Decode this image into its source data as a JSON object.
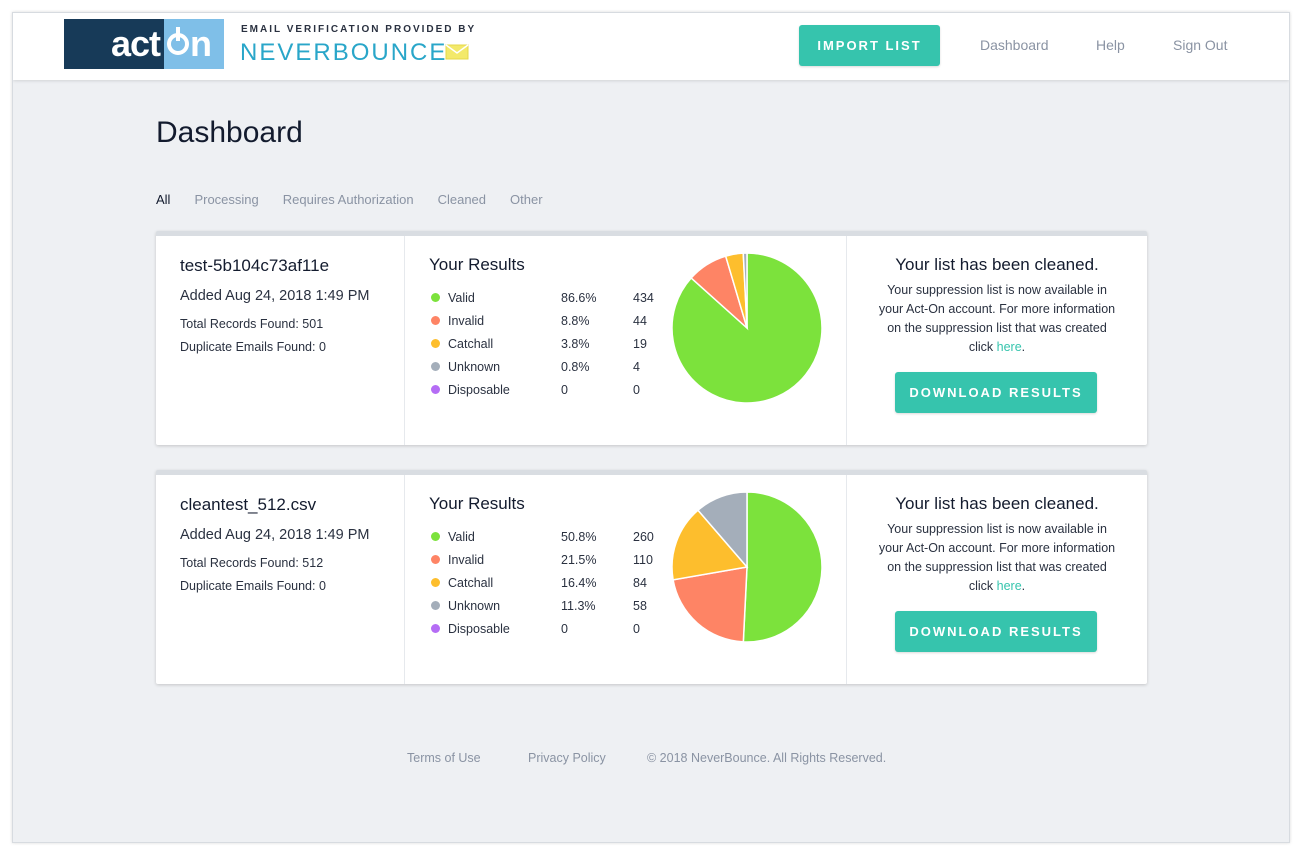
{
  "brand": {
    "logo_left": "act",
    "logo_right": "n",
    "caption": "EMAIL VERIFICATION PROVIDED BY",
    "provider": "NEVERBOUNCE"
  },
  "header": {
    "import_label": "IMPORT LIST",
    "nav": [
      "Dashboard",
      "Help",
      "Sign Out"
    ]
  },
  "page": {
    "title": "Dashboard",
    "tabs": [
      "All",
      "Processing",
      "Requires Authorization",
      "Cleaned",
      "Other"
    ],
    "active_tab": "All"
  },
  "legend_colors": {
    "Valid": "#7ce23c",
    "Invalid": "#fe8465",
    "Catchall": "#fdbe2d",
    "Unknown": "#a4aeba",
    "Disposable": "#b56df5"
  },
  "lists": [
    {
      "name": "test-5b104c73af11e",
      "added": "Added Aug 24, 2018 1:49 PM",
      "total": "Total Records Found: 501",
      "duplicates": "Duplicate Emails Found: 0",
      "results_title": "Your Results",
      "results": [
        {
          "label": "Valid",
          "pct": "86.6%",
          "count": "434",
          "value": 434
        },
        {
          "label": "Invalid",
          "pct": "8.8%",
          "count": "44",
          "value": 44
        },
        {
          "label": "Catchall",
          "pct": "3.8%",
          "count": "19",
          "value": 19
        },
        {
          "label": "Unknown",
          "pct": "0.8%",
          "count": "4",
          "value": 4
        },
        {
          "label": "Disposable",
          "pct": "0",
          "count": "0",
          "value": 0
        }
      ],
      "status_title": "Your list has been cleaned.",
      "status_text": "Your suppression list is now available in your Act-On account. For more information on the suppression list that was created click ",
      "link_text": "here",
      "link_suffix": ".",
      "download_label": "DOWNLOAD RESULTS"
    },
    {
      "name": "cleantest_512.csv",
      "added": "Added Aug 24, 2018 1:49 PM",
      "total": "Total Records Found: 512",
      "duplicates": "Duplicate Emails Found: 0",
      "results_title": "Your Results",
      "results": [
        {
          "label": "Valid",
          "pct": "50.8%",
          "count": "260",
          "value": 260
        },
        {
          "label": "Invalid",
          "pct": "21.5%",
          "count": "110",
          "value": 110
        },
        {
          "label": "Catchall",
          "pct": "16.4%",
          "count": "84",
          "value": 84
        },
        {
          "label": "Unknown",
          "pct": "11.3%",
          "count": "58",
          "value": 58
        },
        {
          "label": "Disposable",
          "pct": "0",
          "count": "0",
          "value": 0
        }
      ],
      "status_title": "Your list has been cleaned.",
      "status_text": "Your suppression list is now available in your Act-On account. For more information on the suppression list that was created click ",
      "link_text": "here",
      "link_suffix": ".",
      "download_label": "DOWNLOAD RESULTS"
    }
  ],
  "footer": {
    "terms": "Terms of Use",
    "privacy": "Privacy Policy",
    "copyright": "© 2018 NeverBounce. All Rights Reserved."
  }
}
